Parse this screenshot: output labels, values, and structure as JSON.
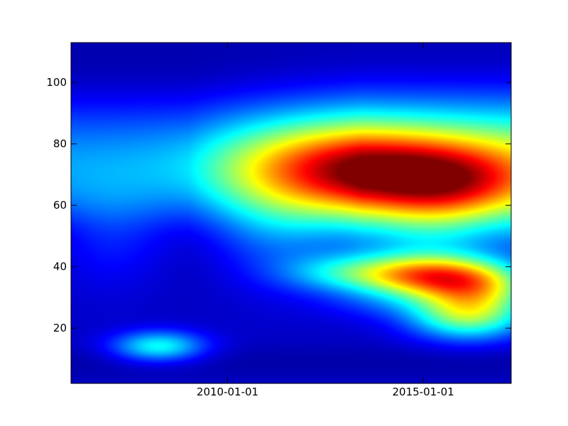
{
  "chart_data": {
    "type": "heatmap",
    "title": "",
    "xlabel": "",
    "ylabel": "",
    "xlim": [
      "2006-01-01",
      "2017-04-01"
    ],
    "ylim": [
      2,
      113
    ],
    "xticks": [
      {
        "value": "2010-01-01",
        "label": "2010-01-01"
      },
      {
        "value": "2015-01-01",
        "label": "2015-01-01"
      }
    ],
    "yticks": [
      20,
      40,
      60,
      80,
      100
    ],
    "colormap": "jet",
    "value_range": [
      0,
      1
    ],
    "grid": false,
    "legend": "none",
    "features": [
      {
        "x": "2008-04-01",
        "y": 14,
        "value": 0.42
      },
      {
        "x": "2012-04-01",
        "y": 72,
        "value": 0.52
      },
      {
        "x": "2014-07-01",
        "y": 70,
        "value": 0.54
      },
      {
        "x": "2016-01-01",
        "y": 67,
        "value": 0.45
      },
      {
        "x": "2013-01-01",
        "y": 38,
        "value": 0.72
      },
      {
        "x": "2015-01-01",
        "y": 37,
        "value": 0.93
      },
      {
        "x": "2016-06-01",
        "y": 34,
        "value": 0.86
      },
      {
        "x": "2016-03-01",
        "y": 24,
        "value": 0.85
      },
      {
        "x": "2014-01-01",
        "y": 28,
        "value": 0.42
      }
    ]
  },
  "colors": {
    "axes_frame": "#000000",
    "background": "#ffffff"
  }
}
